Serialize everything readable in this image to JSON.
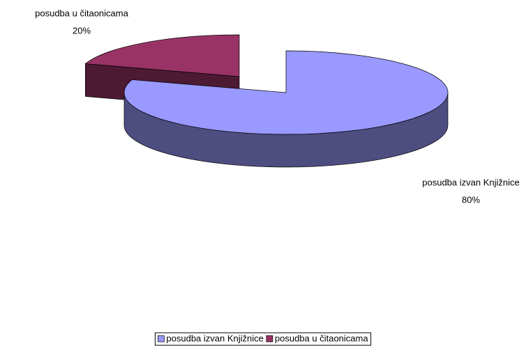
{
  "chart_data": {
    "type": "pie",
    "categories": [
      "posudba izvan Knjižnice",
      "posudba u čitaonicama"
    ],
    "values": [
      80,
      20
    ],
    "value_labels": [
      "80%",
      "20%"
    ],
    "colors": [
      "#9999ff",
      "#993366"
    ],
    "legend": "bottom"
  }
}
